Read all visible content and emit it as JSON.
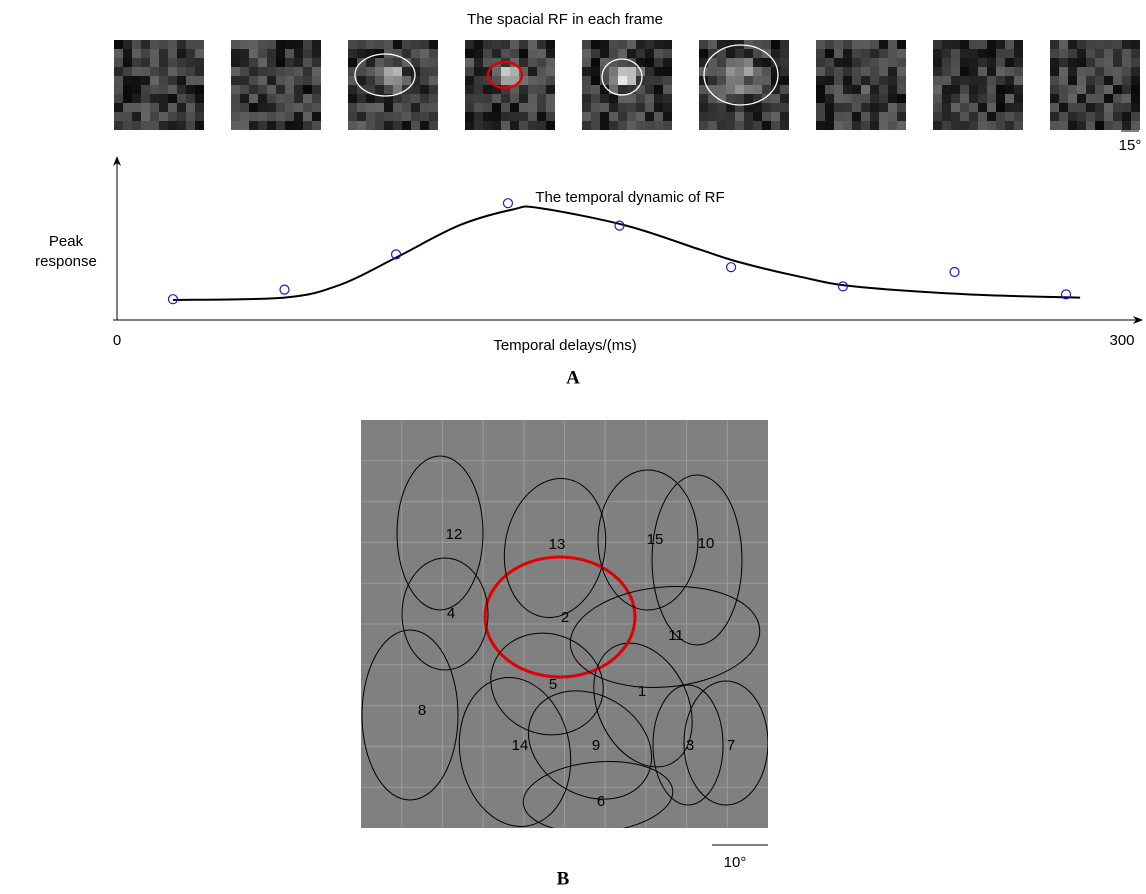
{
  "panel_a": {
    "title": "The spacial RF in each frame",
    "scale_label": "15°",
    "label": "A"
  },
  "chart_data": {
    "type": "scatter",
    "title": "The temporal dynamic of  RF",
    "y_label": [
      "Peak",
      "response"
    ],
    "x_label": "Temporal delays/(ms)",
    "xlim": [
      0,
      300
    ],
    "xticks": [
      0,
      300
    ],
    "ylim": [
      0,
      1
    ],
    "x": [
      16.7,
      50,
      83.3,
      116.7,
      150,
      183.3,
      216.7,
      250,
      283.3
    ],
    "values": [
      0.13,
      0.19,
      0.41,
      0.73,
      0.59,
      0.33,
      0.21,
      0.3,
      0.16
    ],
    "color": "#1a1acc",
    "fit": {
      "x": [
        16.7,
        50,
        66.6,
        83.3,
        102,
        118,
        126,
        152,
        174,
        186,
        204,
        220,
        254,
        287.5
      ],
      "values": [
        0.125,
        0.14,
        0.22,
        0.39,
        0.59,
        0.69,
        0.7,
        0.59,
        0.44,
        0.36,
        0.27,
        0.21,
        0.16,
        0.14
      ],
      "color": "#000000"
    }
  },
  "panel_b": {
    "fields": [
      {
        "label": "1",
        "color": "#000000"
      },
      {
        "label": "2",
        "color": "#e00000"
      },
      {
        "label": "3",
        "color": "#000000"
      },
      {
        "label": "4",
        "color": "#000000"
      },
      {
        "label": "5",
        "color": "#000000"
      },
      {
        "label": "6",
        "color": "#000000"
      },
      {
        "label": "7",
        "color": "#000000"
      },
      {
        "label": "8",
        "color": "#000000"
      },
      {
        "label": "9",
        "color": "#000000"
      },
      {
        "label": "10",
        "color": "#000000"
      },
      {
        "label": "11",
        "color": "#000000"
      },
      {
        "label": "12",
        "color": "#000000"
      },
      {
        "label": "13",
        "color": "#000000"
      },
      {
        "label": "14",
        "color": "#000000"
      },
      {
        "label": "15",
        "color": "#000000"
      }
    ],
    "scale_label": "10°",
    "label": "B"
  }
}
